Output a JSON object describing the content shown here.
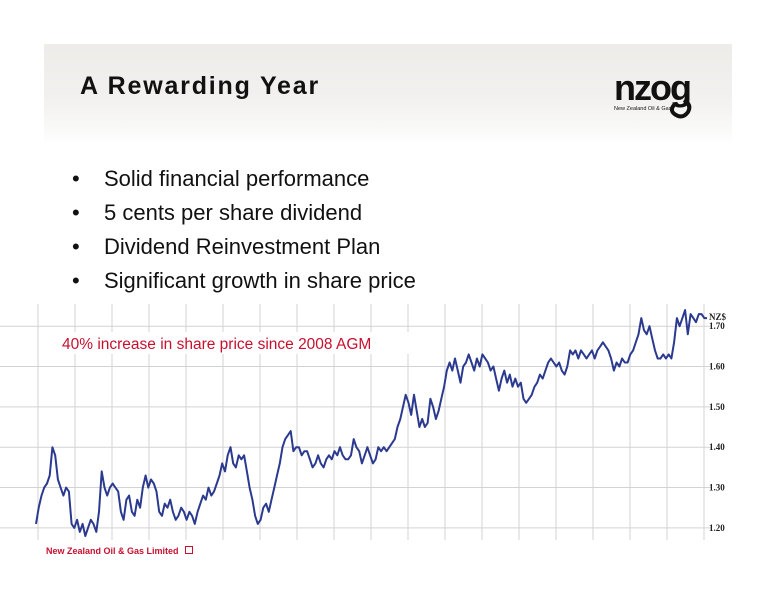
{
  "slide": {
    "title": "A Rewarding Year",
    "logo_text": "nzog",
    "logo_subtext": "New Zealand Oil & Gas",
    "bullets": [
      "Solid financial performance",
      "5 cents per share dividend",
      "Dividend Reinvestment Plan",
      "Significant growth in share price"
    ],
    "bullet_glyph": "•",
    "footer": "New Zealand Oil & Gas Limited"
  },
  "colors": {
    "line": "#2b3a8f",
    "annotation": "#c8102e",
    "grid": "#d3d3d3"
  },
  "chart_data": {
    "type": "line",
    "annotation": "40% increase in share price since 2008 AGM",
    "unit_label": "NZ$",
    "y_axis_side": "right",
    "yticks": [
      1.2,
      1.3,
      1.4,
      1.5,
      1.6,
      1.7
    ],
    "ytick_labels": [
      "1.20",
      "1.30",
      "1.40",
      "1.50",
      "1.60",
      "1.70"
    ],
    "ylim": [
      1.17,
      1.755
    ],
    "grid": true,
    "series": [
      {
        "values": [
          1.21,
          1.25,
          1.28,
          1.3,
          1.31,
          1.33,
          1.4,
          1.38,
          1.32,
          1.3,
          1.28,
          1.3,
          1.29,
          1.21,
          1.2,
          1.22,
          1.19,
          1.21,
          1.18,
          1.2,
          1.22,
          1.21,
          1.19,
          1.24,
          1.34,
          1.3,
          1.28,
          1.3,
          1.31,
          1.3,
          1.29,
          1.24,
          1.22,
          1.27,
          1.28,
          1.24,
          1.23,
          1.27,
          1.25,
          1.3,
          1.33,
          1.3,
          1.32,
          1.31,
          1.29,
          1.24,
          1.23,
          1.26,
          1.25,
          1.27,
          1.24,
          1.22,
          1.23,
          1.25,
          1.24,
          1.22,
          1.24,
          1.23,
          1.21,
          1.24,
          1.26,
          1.28,
          1.27,
          1.3,
          1.28,
          1.29,
          1.31,
          1.33,
          1.36,
          1.34,
          1.38,
          1.4,
          1.36,
          1.35,
          1.38,
          1.37,
          1.38,
          1.34,
          1.3,
          1.27,
          1.23,
          1.21,
          1.22,
          1.25,
          1.26,
          1.24,
          1.27,
          1.3,
          1.33,
          1.36,
          1.4,
          1.42,
          1.43,
          1.44,
          1.39,
          1.4,
          1.4,
          1.38,
          1.39,
          1.39,
          1.37,
          1.35,
          1.36,
          1.38,
          1.36,
          1.35,
          1.37,
          1.38,
          1.37,
          1.39,
          1.38,
          1.4,
          1.38,
          1.37,
          1.37,
          1.38,
          1.42,
          1.4,
          1.39,
          1.36,
          1.38,
          1.4,
          1.38,
          1.36,
          1.37,
          1.4,
          1.39,
          1.4,
          1.39,
          1.4,
          1.41,
          1.42,
          1.45,
          1.47,
          1.5,
          1.53,
          1.51,
          1.48,
          1.53,
          1.49,
          1.45,
          1.47,
          1.45,
          1.46,
          1.52,
          1.5,
          1.47,
          1.49,
          1.52,
          1.55,
          1.59,
          1.61,
          1.59,
          1.62,
          1.59,
          1.56,
          1.6,
          1.61,
          1.63,
          1.61,
          1.59,
          1.62,
          1.6,
          1.63,
          1.62,
          1.61,
          1.59,
          1.6,
          1.57,
          1.54,
          1.57,
          1.59,
          1.56,
          1.58,
          1.55,
          1.57,
          1.55,
          1.56,
          1.52,
          1.51,
          1.52,
          1.53,
          1.55,
          1.56,
          1.58,
          1.57,
          1.59,
          1.61,
          1.62,
          1.61,
          1.6,
          1.61,
          1.59,
          1.58,
          1.6,
          1.64,
          1.63,
          1.64,
          1.62,
          1.64,
          1.63,
          1.62,
          1.63,
          1.64,
          1.62,
          1.64,
          1.65,
          1.66,
          1.65,
          1.64,
          1.62,
          1.59,
          1.61,
          1.6,
          1.62,
          1.61,
          1.61,
          1.63,
          1.64,
          1.66,
          1.68,
          1.72,
          1.69,
          1.68,
          1.7,
          1.67,
          1.64,
          1.62,
          1.62,
          1.63,
          1.62,
          1.63,
          1.62,
          1.66,
          1.72,
          1.7,
          1.72,
          1.74,
          1.68,
          1.73,
          1.72,
          1.71,
          1.73,
          1.73,
          1.72,
          1.72
        ]
      }
    ]
  }
}
